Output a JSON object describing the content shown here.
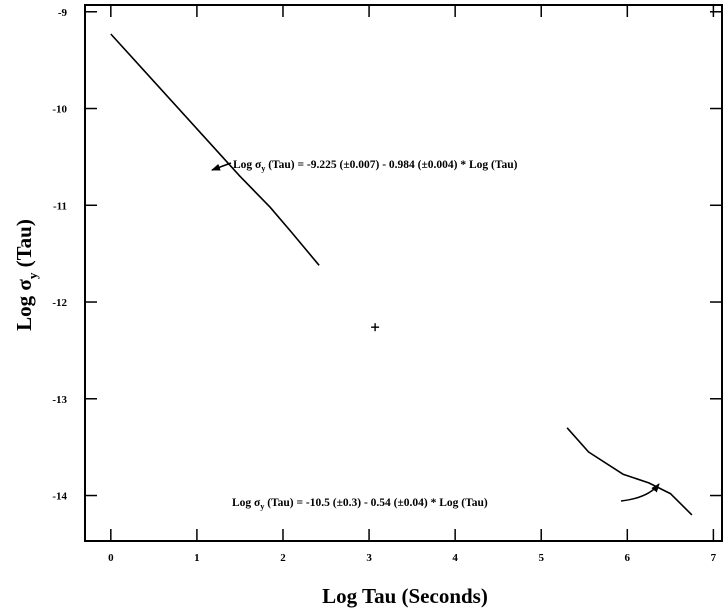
{
  "chart_data": {
    "type": "line",
    "title": "",
    "xlabel": "Log Tau (Seconds)",
    "ylabel_parts": {
      "prefix": "Log ",
      "symbol": "σ",
      "subscript": "y",
      "suffix": " (Tau)"
    },
    "xlim": [
      -0.3,
      7.1
    ],
    "ylim": [
      -14.47,
      -8.93
    ],
    "xticks": [
      0,
      1,
      2,
      3,
      4,
      5,
      6,
      7
    ],
    "yticks": [
      -9,
      -10,
      -11,
      -12,
      -13,
      -14
    ],
    "grid": false,
    "series": [
      {
        "values": [
          {
            "x": 0.0,
            "y": -9.23
          },
          {
            "x": 0.5,
            "y": -9.72
          },
          {
            "x": 1.0,
            "y": -10.21
          },
          {
            "x": 1.5,
            "y": -10.7
          },
          {
            "x": 1.85,
            "y": -11.02
          },
          {
            "x": 2.1,
            "y": -11.28
          },
          {
            "x": 2.42,
            "y": -11.62
          }
        ]
      },
      {
        "values": [
          {
            "x": 5.3,
            "y": -13.3
          },
          {
            "x": 5.55,
            "y": -13.55
          },
          {
            "x": 5.95,
            "y": -13.78
          },
          {
            "x": 6.25,
            "y": -13.87
          },
          {
            "x": 6.5,
            "y": -13.98
          },
          {
            "x": 6.75,
            "y": -14.2
          }
        ]
      }
    ],
    "points": [
      {
        "x": 3.07,
        "y": -12.26,
        "marker": "+"
      }
    ],
    "annotations": [
      {
        "before": "Log ",
        "symbol": "σ",
        "sub": "y",
        "after": " (Tau) = -9.225 (±0.007) - 0.984 (±0.004) * Log (Tau)"
      },
      {
        "before": "Log ",
        "symbol": "σ",
        "sub": "y",
        "after": " (Tau) = -10.5 (±0.3) - 0.54 (±0.04) * Log (Tau)"
      }
    ]
  }
}
